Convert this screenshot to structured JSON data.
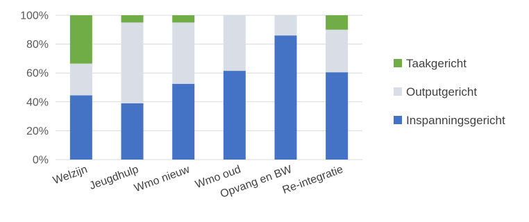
{
  "chart_data": {
    "type": "bar",
    "stacked": true,
    "percent": true,
    "categories": [
      "Welzijn",
      "Jeugdhulp",
      "Wmo nieuw",
      "Wmo oud",
      "Opvang en BW",
      "Re-integratie"
    ],
    "series": [
      {
        "name": "Inspanningsgericht",
        "color": "#4472c4",
        "values": [
          44.5,
          39,
          52.5,
          61.5,
          86,
          60.5
        ]
      },
      {
        "name": "Outputgericht",
        "color": "#d9dde6",
        "values": [
          22,
          56,
          42.5,
          38.5,
          14,
          29.5
        ]
      },
      {
        "name": "Taakgericht",
        "color": "#70ad47",
        "values": [
          33.5,
          5,
          5,
          0,
          0,
          10
        ]
      }
    ],
    "y_ticks": [
      "0%",
      "20%",
      "40%",
      "60%",
      "80%",
      "100%"
    ],
    "ylim": [
      0,
      100
    ],
    "grid": true,
    "legend_position": "right",
    "legend_order": [
      "Taakgericht",
      "Outputgericht",
      "Inspanningsgericht"
    ]
  }
}
